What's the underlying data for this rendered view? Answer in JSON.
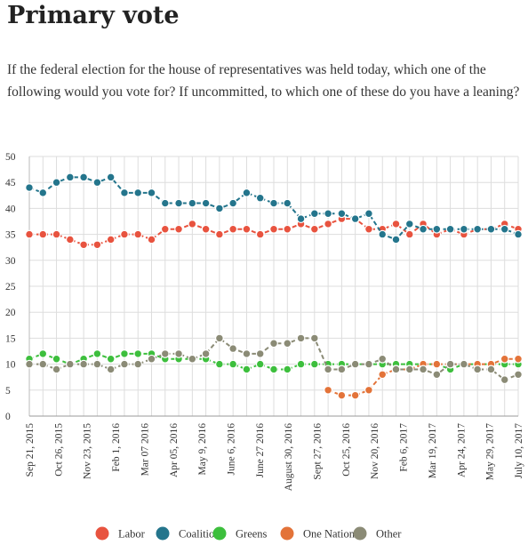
{
  "page": {
    "title": "Primary vote",
    "question": "If the federal election for the house of representatives was held today, which one of the following would you vote for? If uncommitted, to which one of these do you have a leaning?"
  },
  "chart_data": {
    "type": "line",
    "title": "Primary vote",
    "ylim": [
      0,
      50
    ],
    "yticks": [
      0,
      5,
      10,
      15,
      20,
      25,
      30,
      35,
      40,
      45,
      50
    ],
    "grid": true,
    "legend_position": "bottom",
    "x_tick_labels": [
      "Sep 21, 2015",
      "Oct 26, 2015",
      "Nov 23, 2015",
      "Feb 1, 2016",
      "Mar 07 2016",
      "Apr 05, 2016",
      "May 9, 2016",
      "June 6, 2016",
      "June 27 2016",
      "August 30, 2016",
      "Sept 27, 2016",
      "Oct 25, 2016",
      "Nov 20, 2016",
      "Feb 6, 2017",
      "Mar 19, 2017",
      "Apr 24, 2017",
      "May 29, 2017",
      "July 10, 2017"
    ],
    "series": [
      {
        "name": "Labor",
        "color": "#e8533f",
        "values": [
          35,
          35,
          35,
          34,
          33,
          33,
          34,
          35,
          35,
          34,
          36,
          36,
          37,
          36,
          35,
          36,
          36,
          35,
          36,
          36,
          37,
          36,
          37,
          38,
          38,
          36,
          36,
          37,
          35,
          37,
          35,
          36,
          35,
          36,
          36,
          37,
          36
        ]
      },
      {
        "name": "Coalition",
        "color": "#24758c",
        "values": [
          44,
          43,
          45,
          46,
          46,
          45,
          46,
          43,
          43,
          43,
          41,
          41,
          41,
          41,
          40,
          41,
          43,
          42,
          41,
          41,
          38,
          39,
          39,
          39,
          38,
          39,
          35,
          34,
          37,
          36,
          36,
          36,
          36,
          36,
          36,
          36,
          35
        ]
      },
      {
        "name": "Greens",
        "color": "#3dbf3d",
        "values": [
          11,
          12,
          11,
          10,
          11,
          12,
          11,
          12,
          12,
          12,
          11,
          11,
          11,
          11,
          10,
          10,
          9,
          10,
          9,
          9,
          10,
          10,
          10,
          10,
          10,
          10,
          10,
          10,
          10,
          10,
          10,
          9,
          10,
          10,
          10,
          10,
          10
        ]
      },
      {
        "name": "One Nation",
        "color": "#e37339",
        "values": [
          null,
          null,
          null,
          null,
          null,
          null,
          null,
          null,
          null,
          null,
          null,
          null,
          null,
          null,
          null,
          null,
          null,
          null,
          null,
          null,
          null,
          null,
          5,
          4,
          4,
          5,
          8,
          9,
          9,
          10,
          10,
          10,
          10,
          10,
          10,
          11,
          11
        ]
      },
      {
        "name": "Other",
        "color": "#8b8b76",
        "values": [
          10,
          10,
          9,
          10,
          10,
          10,
          9,
          10,
          10,
          11,
          12,
          12,
          11,
          12,
          15,
          13,
          12,
          12,
          14,
          14,
          15,
          15,
          9,
          9,
          10,
          10,
          11,
          9,
          9,
          9,
          8,
          10,
          10,
          9,
          9,
          7,
          8
        ]
      }
    ]
  }
}
